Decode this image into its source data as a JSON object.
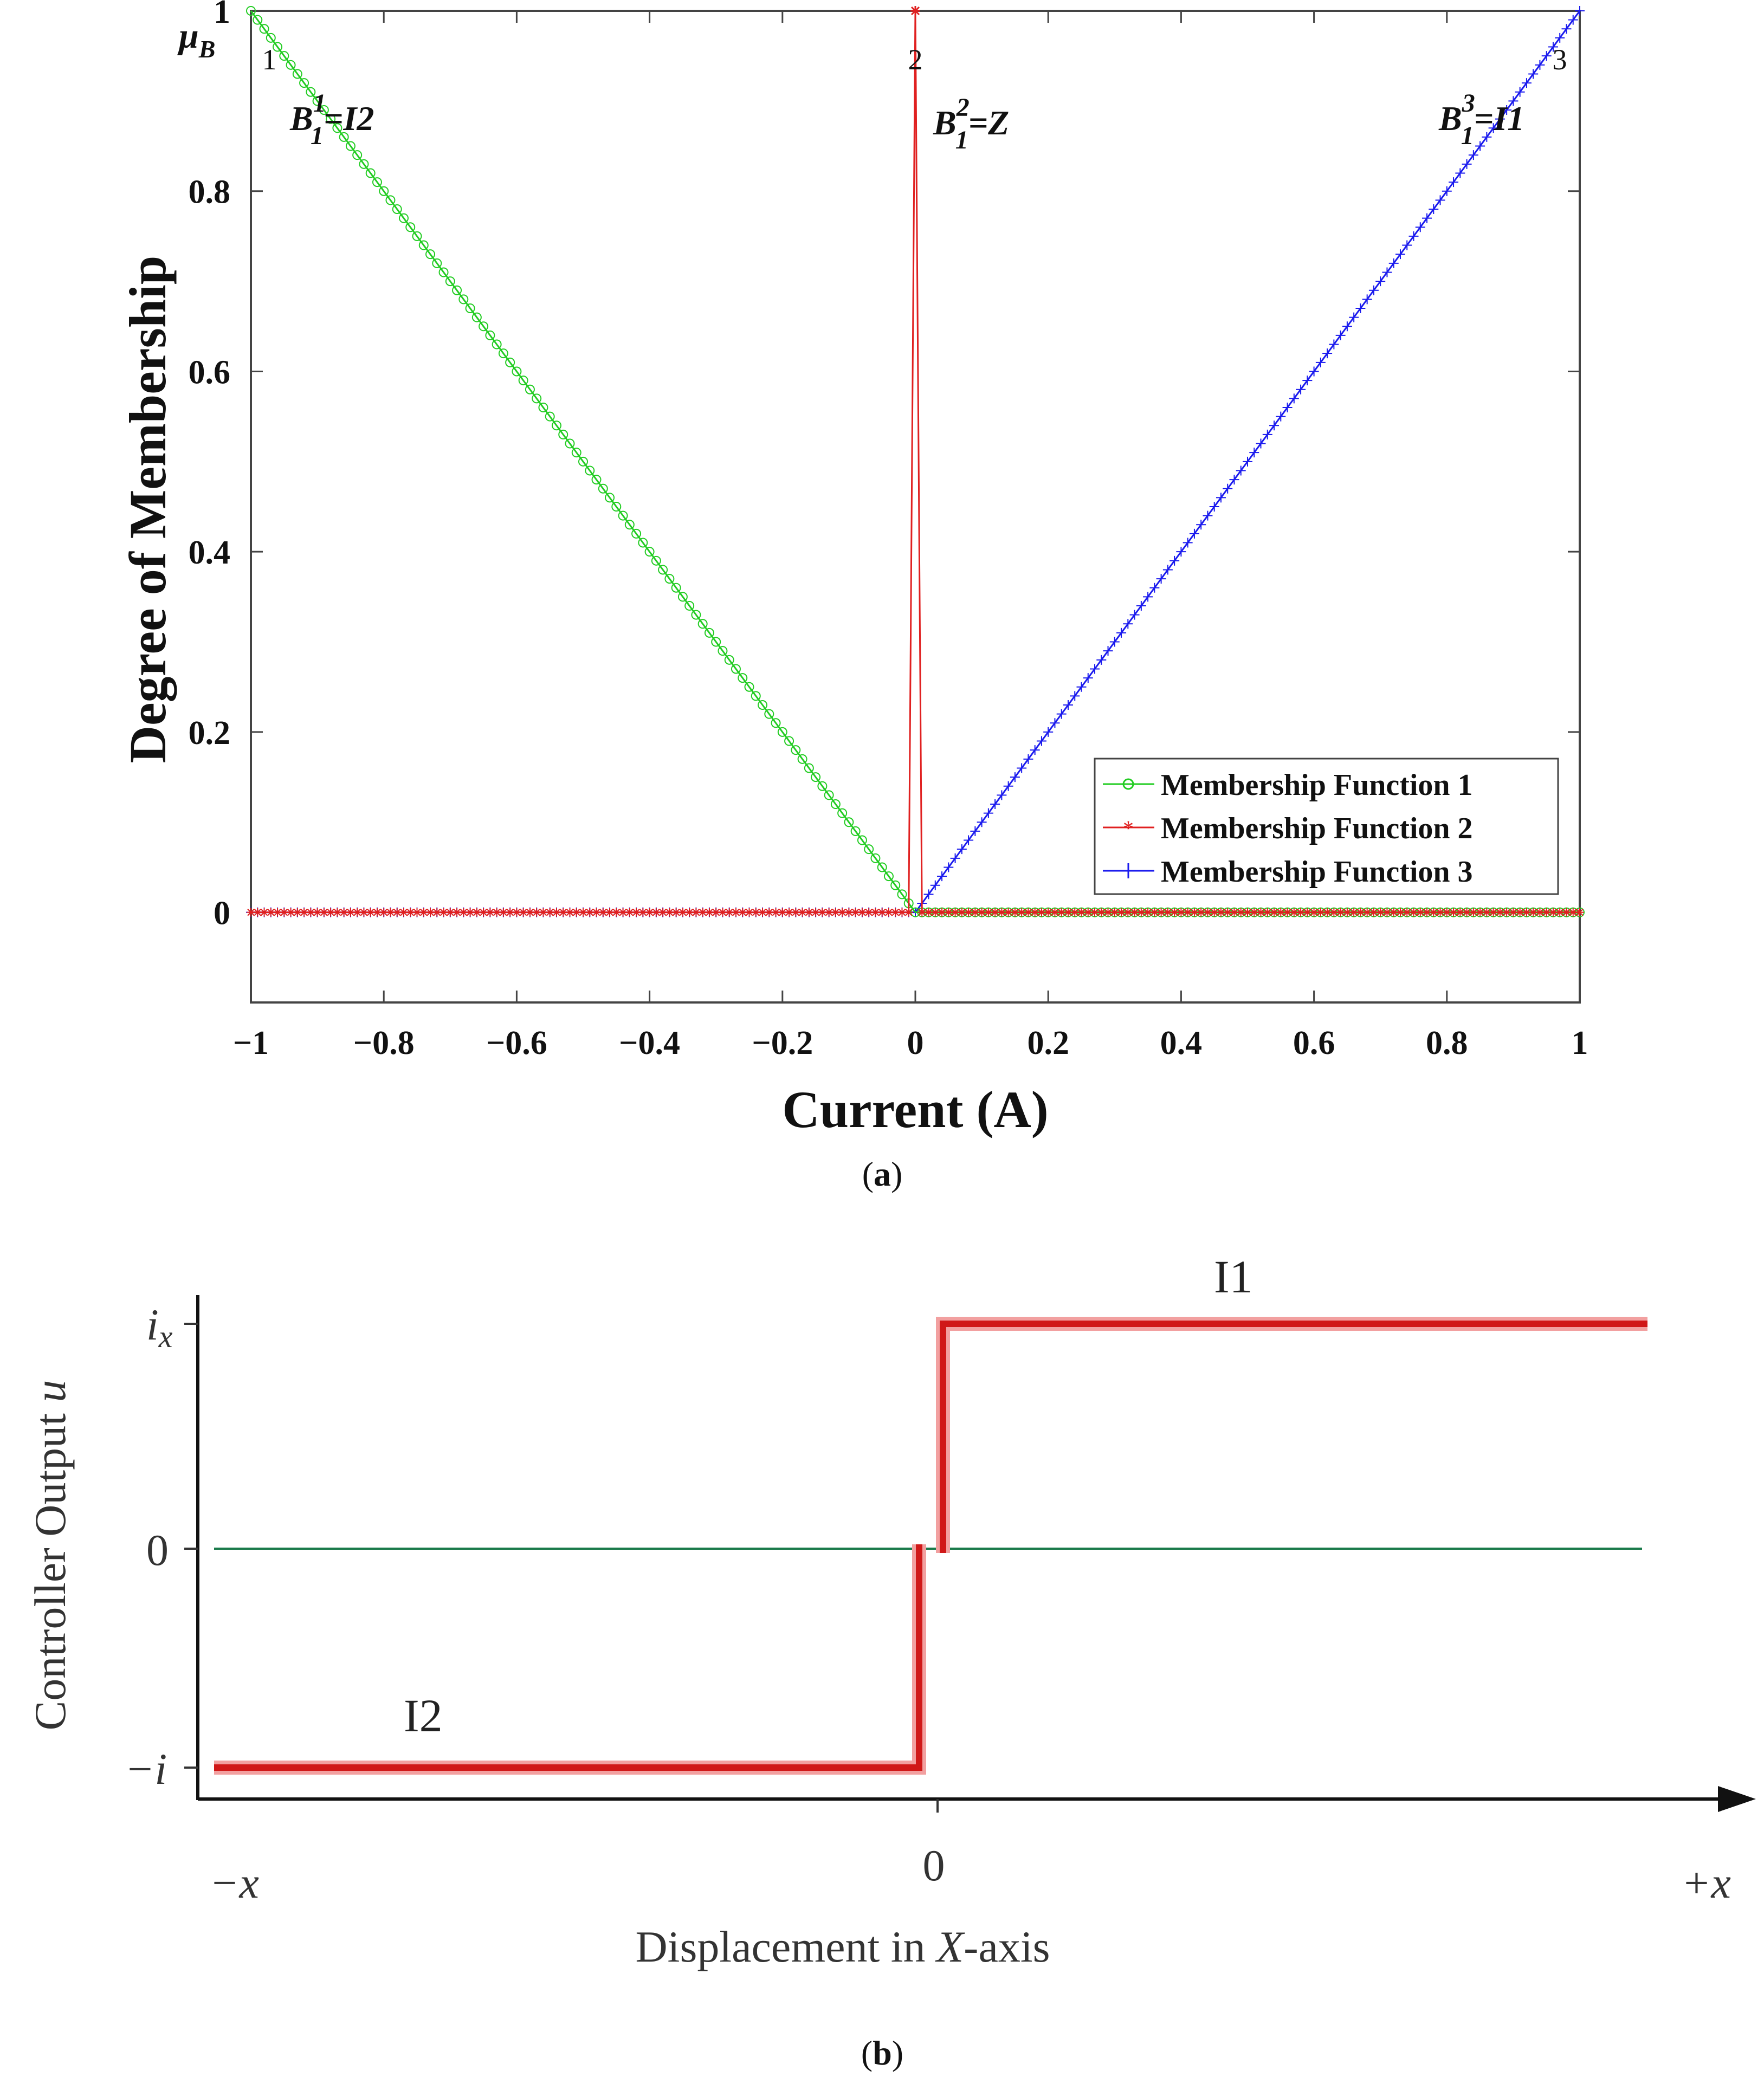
{
  "chart_data": [
    {
      "id": "a",
      "type": "line",
      "caption_letter": "a",
      "ylabel_symbol": "μ",
      "ylabel_symbol_sub": "B",
      "ylabel": "Degree of Membership",
      "xlabel": "Current (A)",
      "xlim": [
        -1,
        1
      ],
      "ylim": [
        -0.1,
        1
      ],
      "xticks": [
        -1,
        -0.8,
        -0.6,
        -0.4,
        -0.2,
        0,
        0.2,
        0.4,
        0.6,
        0.8,
        1
      ],
      "xtick_labels": [
        "−1",
        "−0.8",
        "−0.6",
        "−0.4",
        "−0.2",
        "0",
        "0.2",
        "0.4",
        "0.6",
        "0.8",
        "1"
      ],
      "yticks": [
        0,
        0.2,
        0.4,
        0.6,
        0.8,
        1
      ],
      "ytick_labels": [
        "0",
        "0.2",
        "0.4",
        "0.6",
        "0.8",
        "1"
      ],
      "series": [
        {
          "name": "Membership Function 1",
          "color": "#22cc22",
          "marker": "circle",
          "x": [
            -1,
            0,
            0.0001,
            1
          ],
          "y": [
            1,
            0,
            0,
            0
          ]
        },
        {
          "name": "Membership Function 2",
          "color": "#e02020",
          "marker": "star",
          "x": [
            -1,
            -0.01,
            0,
            0.01,
            1
          ],
          "y": [
            0,
            0,
            1,
            0,
            0
          ]
        },
        {
          "name": "Membership Function 3",
          "color": "#1a1aee",
          "marker": "plus",
          "x": [
            -1,
            0,
            1
          ],
          "y": [
            0,
            0,
            1
          ]
        }
      ],
      "peak_numbers": [
        {
          "x": -1,
          "text": "1"
        },
        {
          "x": 0,
          "text": "2"
        },
        {
          "x": 1,
          "text": "3"
        }
      ],
      "set_labels": [
        {
          "base": "B",
          "sup": "1",
          "sub": "1",
          "rest": "=I2"
        },
        {
          "base": "B",
          "sup": "2",
          "sub": "1",
          "rest": "=Z"
        },
        {
          "base": "B",
          "sup": "3",
          "sub": "1",
          "rest": "=I1"
        }
      ],
      "legend_position": "bottom-right",
      "grid": false
    },
    {
      "id": "b",
      "type": "line",
      "caption_letter": "b",
      "ylabel_main": "Controller Output ",
      "ylabel_var": "u",
      "xlabel_pre": "Displacement in ",
      "xlabel_var": "X",
      "xlabel_post": "-axis",
      "xtick_labels": {
        "left": "−x",
        "center": "0",
        "right": "+x"
      },
      "ytick_labels": {
        "top_i": "i",
        "top_sub": "x",
        "zero": "0",
        "bottom": "−i"
      },
      "xlim": [
        -1,
        1
      ],
      "ylim": [
        -1.1,
        1.1
      ],
      "series": [
        {
          "name": "control",
          "color": "#d01818",
          "x": [
            -1,
            -0.04,
            -0.04,
            0.0,
            0.0,
            0.04,
            0.04,
            1.0
          ],
          "y": [
            -1,
            -1,
            0,
            0,
            0,
            0,
            1,
            1
          ]
        },
        {
          "name": "zero",
          "color": "#1a7a4a",
          "x": [
            -1,
            1
          ],
          "y": [
            0,
            0
          ]
        }
      ],
      "region_labels": [
        "I1",
        "I2"
      ]
    }
  ]
}
